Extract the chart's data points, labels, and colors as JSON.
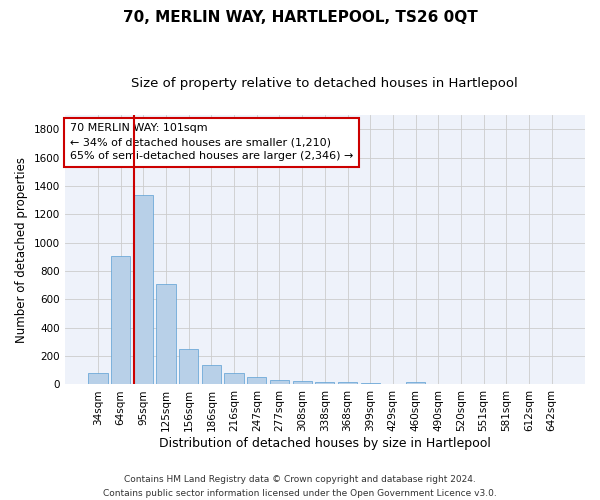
{
  "title": "70, MERLIN WAY, HARTLEPOOL, TS26 0QT",
  "subtitle": "Size of property relative to detached houses in Hartlepool",
  "xlabel": "Distribution of detached houses by size in Hartlepool",
  "ylabel": "Number of detached properties",
  "categories": [
    "34sqm",
    "64sqm",
    "95sqm",
    "125sqm",
    "156sqm",
    "186sqm",
    "216sqm",
    "247sqm",
    "277sqm",
    "308sqm",
    "338sqm",
    "368sqm",
    "399sqm",
    "429sqm",
    "460sqm",
    "490sqm",
    "520sqm",
    "551sqm",
    "581sqm",
    "612sqm",
    "642sqm"
  ],
  "values": [
    80,
    905,
    1340,
    710,
    248,
    138,
    80,
    55,
    30,
    25,
    20,
    15,
    10,
    0,
    20,
    0,
    0,
    0,
    0,
    0,
    0
  ],
  "bar_color": "#b8d0e8",
  "bar_edgecolor": "#5a9fd4",
  "grid_color": "#cccccc",
  "background_color": "#eef2fa",
  "vline_color": "#cc0000",
  "annotation_line1": "70 MERLIN WAY: 101sqm",
  "annotation_line2": "← 34% of detached houses are smaller (1,210)",
  "annotation_line3": "65% of semi-detached houses are larger (2,346) →",
  "annotation_box_color": "#cc0000",
  "ylim": [
    0,
    1900
  ],
  "yticks": [
    0,
    200,
    400,
    600,
    800,
    1000,
    1200,
    1400,
    1600,
    1800
  ],
  "footer_text": "Contains HM Land Registry data © Crown copyright and database right 2024.\nContains public sector information licensed under the Open Government Licence v3.0.",
  "title_fontsize": 11,
  "subtitle_fontsize": 9.5,
  "xlabel_fontsize": 9,
  "ylabel_fontsize": 8.5,
  "tick_fontsize": 7.5,
  "annotation_fontsize": 8,
  "footer_fontsize": 6.5
}
